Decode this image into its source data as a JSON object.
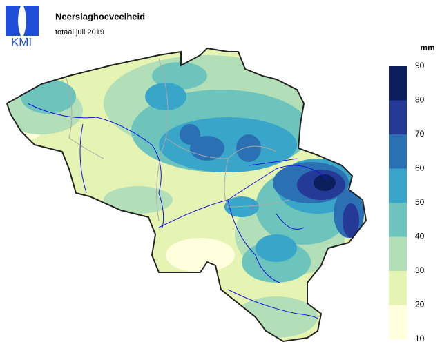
{
  "header": {
    "logo_text": "KMI",
    "title": "Neerslaghoeveelheid",
    "subtitle": "totaal juli 2019"
  },
  "legend": {
    "unit": "mm",
    "ticks": [
      10,
      20,
      30,
      40,
      50,
      60,
      70,
      80,
      90
    ],
    "colors": [
      "#ffffdd",
      "#e6f4b3",
      "#b2dfb7",
      "#6cc4bd",
      "#38a5c9",
      "#2a70b3",
      "#253a97",
      "#0b1f5c"
    ]
  }
}
